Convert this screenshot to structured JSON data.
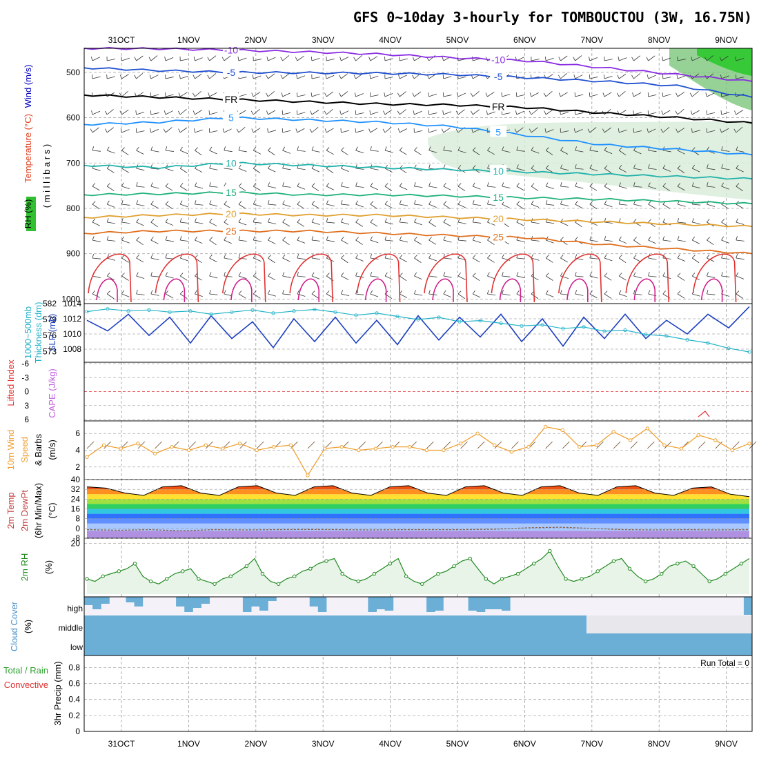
{
  "title": "GFS 0~10day 3-hourly for TOMBOUCTOU (3W, 16.75N)",
  "chart_data": {
    "type": "line",
    "x_ticks": [
      "31OCT",
      "1NOV",
      "2NOV",
      "3NOV",
      "4NOV",
      "5NOV",
      "6NOV",
      "7NOV",
      "8NOV",
      "9NOV"
    ],
    "panels": [
      {
        "id": "upper-air",
        "y_ticks": [
          "500",
          "600",
          "700",
          "800",
          "900",
          "1000"
        ],
        "labels": {
          "wind": "Wind (m/s)",
          "temperature": "Temperature (°C)",
          "rh": "RH (%)",
          "pressure": "( m i l l i b a r s )"
        },
        "isotherms": [
          {
            "label": "-10",
            "color": "#8a2be2",
            "values_mb": [
              447,
              448,
              451,
              455,
              460,
              468,
              475,
              490,
              505,
              520
            ]
          },
          {
            "label": "-5",
            "color": "#2050d0",
            "values_mb": [
              490,
              496,
              500,
              501,
              502,
              505,
              512,
              520,
              530,
              555
            ]
          },
          {
            "label": "FR",
            "color": "#000000",
            "values_mb": [
              550,
              555,
              560,
              565,
              570,
              572,
              578,
              590,
              600,
              612
            ]
          },
          {
            "label": "5",
            "color": "#1e90ff",
            "values_mb": [
              615,
              610,
              600,
              605,
              610,
              620,
              640,
              660,
              670,
              682
            ]
          },
          {
            "label": "10",
            "color": "#20b2aa",
            "values_mb": [
              705,
              710,
              700,
              705,
              710,
              715,
              720,
              725,
              730,
              735
            ]
          },
          {
            "label": "15",
            "color": "#20b27a",
            "values_mb": [
              770,
              768,
              765,
              770,
              770,
              773,
              777,
              780,
              785,
              790
            ]
          },
          {
            "label": "20",
            "color": "#e0a030",
            "values_mb": [
              820,
              815,
              812,
              815,
              815,
              820,
              825,
              830,
              835,
              840
            ]
          },
          {
            "label": "25",
            "color": "#e07020",
            "values_mb": [
              855,
              850,
              850,
              850,
              855,
              860,
              865,
              880,
              890,
              900
            ]
          }
        ]
      },
      {
        "id": "slp-thickness",
        "labels": {
          "slp": "SLP (mb)",
          "thickness": "Thickness (dm)",
          "thickness_top": "1000~500mb"
        },
        "slp_ticks": [
          "1008",
          "1010",
          "1012",
          "1014"
        ],
        "thickness_ticks": [
          "573",
          "576",
          "579",
          "582"
        ],
        "slp_color": "#1c3fc0",
        "thickness_color": "#20b2c8",
        "slp": [
          1011.8,
          1010.4,
          1012.6,
          1009.8,
          1012.2,
          1008.8,
          1012.4,
          1009.4,
          1011.6,
          1008.2,
          1012.0,
          1009.0,
          1012.2,
          1008.8,
          1011.8,
          1008.6,
          1012.4,
          1009.2,
          1012.2,
          1009.6,
          1012.6,
          1009.0,
          1012.0,
          1008.4,
          1012.2,
          1009.4,
          1012.6,
          1009.4,
          1011.8,
          1010.0,
          1012.6,
          1010.8,
          1013.6
        ],
        "thickness": [
          580.5,
          581.0,
          580.6,
          580.8,
          580.4,
          580.6,
          580.0,
          580.4,
          580.8,
          580.2,
          580.6,
          580.9,
          580.4,
          579.8,
          580.2,
          579.6,
          579.0,
          579.4,
          578.6,
          578.8,
          578.3,
          577.8,
          578.0,
          577.3,
          577.6,
          576.8,
          577.0,
          576.2,
          575.9,
          575.2,
          574.6,
          573.6,
          572.9
        ]
      },
      {
        "id": "cape-li",
        "labels": {
          "li": "Lifted Index",
          "cape": "CAPE (J/kg)"
        },
        "y_ticks": [
          "-6",
          "-3",
          "0",
          "3",
          "6"
        ],
        "li_color": "#e03030",
        "cape_color": "#c060e0"
      },
      {
        "id": "wind10m",
        "labels": {
          "line1": "10m Wind",
          "line2": "Speed",
          "line3": "& Barbs",
          "unit": "(m/s)"
        },
        "y_ticks": [
          "2",
          "4",
          "6"
        ],
        "color": "#f0a030",
        "speed": [
          3.2,
          4.6,
          4.2,
          4.8,
          3.6,
          4.4,
          4.0,
          4.6,
          4.2,
          4.8,
          4.0,
          4.4,
          4.6,
          1.0,
          4.2,
          4.4,
          4.0,
          4.2,
          4.4,
          4.4,
          4.0,
          4.0,
          4.8,
          6.0,
          4.6,
          3.8,
          4.4,
          6.8,
          6.4,
          4.4,
          4.6,
          6.2,
          5.2,
          6.6,
          4.6,
          4.2,
          5.8,
          5.2,
          4.0,
          4.8
        ]
      },
      {
        "id": "temp2m",
        "labels": {
          "line1": "2m Temp",
          "line2": "2m DewPt",
          "line3": "(6hr Min/Max)",
          "unit": "(°C)"
        },
        "y_ticks": [
          "-8",
          "0",
          "8",
          "16",
          "24",
          "32",
          "40"
        ],
        "temp": [
          34,
          33,
          29,
          27,
          34,
          35,
          29,
          27,
          34,
          35,
          29,
          27,
          34,
          35,
          29,
          27,
          34,
          35,
          29,
          27,
          34,
          35,
          29,
          27,
          34,
          35,
          29,
          27,
          34,
          35,
          29,
          27,
          33,
          34,
          28,
          26
        ],
        "dewpoint": [
          -1,
          -1.5,
          -1,
          -2,
          -1,
          -1.2,
          -1,
          -0.8,
          -1,
          -1.2,
          -1,
          -1,
          -1,
          -0.6,
          0.5,
          1,
          0,
          -1,
          -1.2,
          -1,
          -1.2,
          -1
        ],
        "dewpoint_color": "#8a6048"
      },
      {
        "id": "rh2m",
        "labels": {
          "main": "2m RH",
          "unit": "(%)"
        },
        "y_ticks": [
          "20"
        ],
        "color": "#208a20",
        "rh": [
          6,
          5,
          7,
          8,
          9,
          10,
          12,
          7,
          5,
          4,
          6,
          8,
          9,
          10,
          6,
          5,
          4,
          6,
          7,
          9,
          11,
          14,
          8,
          5,
          4,
          6,
          7,
          9,
          10,
          12,
          13,
          14,
          8,
          6,
          5,
          6,
          8,
          10,
          12,
          14,
          7,
          5,
          4,
          6,
          8,
          9,
          11,
          13,
          14,
          10,
          6,
          4,
          6,
          7,
          8,
          10,
          12,
          14,
          17,
          11,
          6,
          5,
          6,
          7,
          9,
          11,
          13,
          14,
          10,
          7,
          5,
          6,
          8,
          11,
          12,
          13,
          11,
          8,
          5,
          6,
          8,
          10,
          12,
          14
        ]
      },
      {
        "id": "cloud",
        "labels": {
          "main": "Cloud Cover",
          "unit": "(%)",
          "high": "high",
          "middle": "middle",
          "low": "low"
        },
        "color": "#6baed6"
      },
      {
        "id": "precip",
        "labels": {
          "total": "Total / Rain",
          "conv": "Convective",
          "unit": "3hr Precip (mm)",
          "run_total": "Run Total = 0"
        },
        "y_ticks": [
          "0",
          "0.2",
          "0.4",
          "0.6",
          "0.8"
        ]
      }
    ]
  }
}
